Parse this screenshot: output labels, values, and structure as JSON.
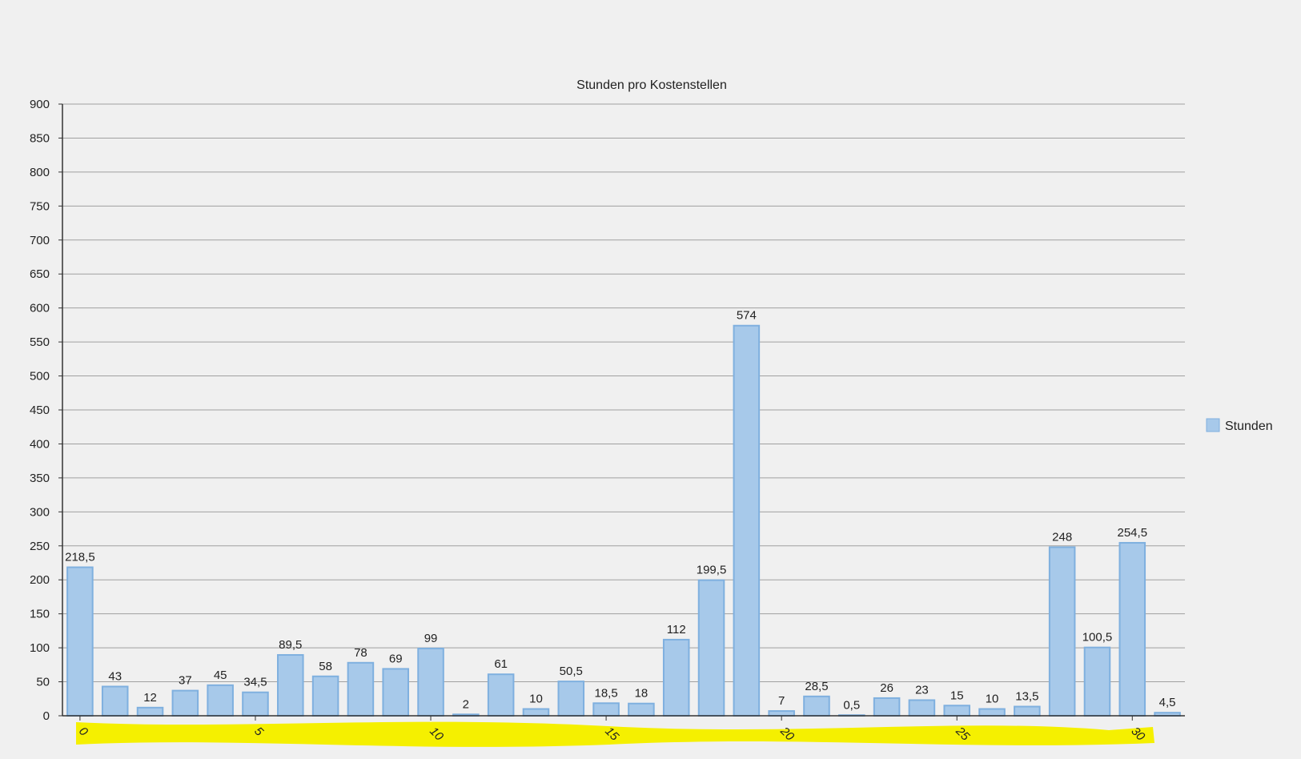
{
  "colors": {
    "background": "#f0f0f0",
    "bar_fill": "#a7c9ea",
    "bar_stroke": "#7fb0df",
    "grid": "#a0a0a0",
    "axis": "#333333",
    "highlight": "#f5f000"
  },
  "chart_data": {
    "type": "bar",
    "title": "Stunden pro Kostenstellen",
    "xlabel": "",
    "ylabel": "",
    "ylim": [
      0,
      900
    ],
    "y_ticks": [
      0,
      50,
      100,
      150,
      200,
      250,
      300,
      350,
      400,
      450,
      500,
      550,
      600,
      650,
      700,
      750,
      800,
      850,
      900
    ],
    "y_tick_labels": [
      "0",
      "50",
      "100",
      "150",
      "200",
      "250",
      "300",
      "350",
      "400",
      "450",
      "500",
      "550",
      "600",
      "650",
      "700",
      "750",
      "800",
      "850",
      "900"
    ],
    "x": [
      0,
      1,
      2,
      3,
      4,
      5,
      6,
      7,
      8,
      9,
      10,
      11,
      12,
      13,
      14,
      15,
      16,
      17,
      18,
      19,
      20,
      21,
      22,
      23,
      24,
      25,
      26,
      27,
      28,
      29,
      30,
      31
    ],
    "x_ticks": [
      0,
      5,
      10,
      15,
      20,
      25,
      30
    ],
    "x_tick_labels": [
      "0",
      "5",
      "10",
      "15",
      "20",
      "25",
      "30"
    ],
    "grid": true,
    "legend_position": "right",
    "series": [
      {
        "name": "Stunden",
        "values": [
          218.5,
          43,
          12,
          37,
          45,
          34.5,
          89.5,
          58,
          78,
          69,
          99,
          2,
          61,
          10,
          50.5,
          18.5,
          18,
          112,
          199.5,
          574,
          7,
          28.5,
          0.5,
          26,
          23,
          15,
          10,
          13.5,
          248,
          100.5,
          254.5,
          4.5
        ],
        "value_labels": [
          "218,5",
          "43",
          "12",
          "37",
          "45",
          "34,5",
          "89,5",
          "58",
          "78",
          "69",
          "99",
          "2",
          "61",
          "10",
          "50,5",
          "18,5",
          "18",
          "112",
          "199,5",
          "574",
          "7",
          "28,5",
          "0,5",
          "26",
          "23",
          "15",
          "10",
          "13,5",
          "248",
          "100,5",
          "254,5",
          "4,5"
        ]
      }
    ]
  }
}
